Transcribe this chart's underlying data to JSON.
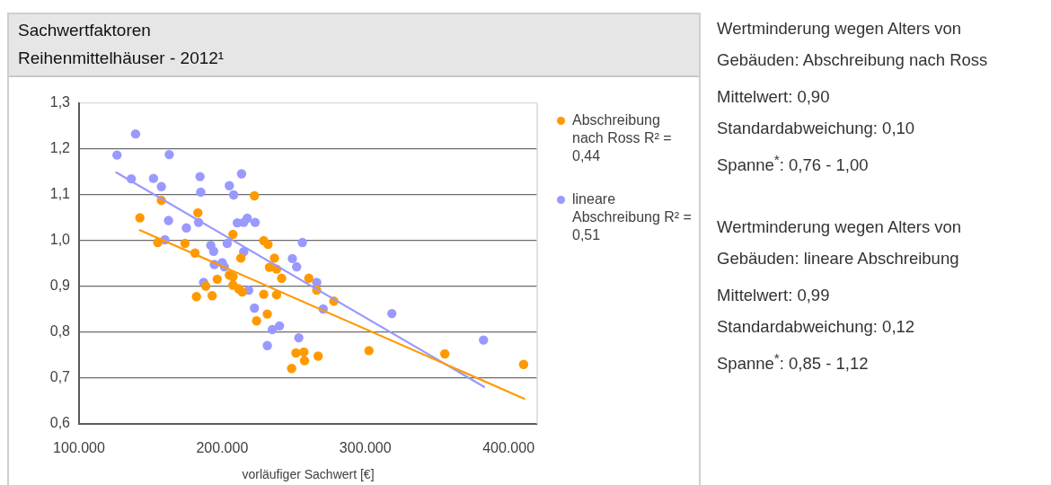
{
  "chart_data": {
    "type": "scatter",
    "title": "Sachwertfaktoren",
    "subtitle": "Reihenmittelhäuser - 2012¹",
    "xlabel": "vorläufiger Sachwert [€]",
    "annotations": [
      "Wertminderung wegen Alters von Gebäuden: Abschreibung nach Ross",
      "Mittelwert: 0,90",
      "Standardabweichung: 0,10",
      "Spanne$^{*}$: 0,76 - 1,00",
      "Wertminderung wegen Alters von Gebäuden: lineare Abschreibung",
      "Mittelwert: 0,99",
      "Standardabweichung: 0,12",
      "Spanne$^{*}$: 0,85 - 1,12"
    ],
    "legend": "right",
    "grid": "y",
    "marker": "circle",
    "xlim": [
      100000,
      420000
    ],
    "xticks": [
      {
        "value": 100000,
        "label": "100.000"
      },
      {
        "value": 200000,
        "label": "200.000"
      },
      {
        "value": 300000,
        "label": "300.000"
      },
      {
        "value": 400000,
        "label": "400.000"
      }
    ],
    "ylim": [
      0.6,
      1.3
    ],
    "yticks": [
      {
        "value": 0.6,
        "label": "0,6"
      },
      {
        "value": 0.7,
        "label": "0,7"
      },
      {
        "value": 0.8,
        "label": "0,8"
      },
      {
        "value": 0.9,
        "label": "0,9"
      },
      {
        "value": 1.0,
        "label": "1,0"
      },
      {
        "value": 1.1,
        "label": "1,1"
      },
      {
        "value": 1.2,
        "label": "1,2"
      },
      {
        "value": 1.3,
        "label": "1,3"
      }
    ],
    "series": [
      {
        "name": "Abschreibung nach Ross R² = 0,44",
        "color": "#ff9900",
        "x": [
          142500,
          157500,
          183000,
          155000,
          174000,
          181000,
          207500,
          205000,
          207500,
          196500,
          188500,
          207500,
          182000,
          193000,
          211500,
          214000,
          222500,
          229000,
          232000,
          213000,
          236500,
          233000,
          238000,
          241500,
          229000,
          238000,
          260500,
          266000,
          278000,
          231500,
          224000,
          251500,
          257000,
          257500,
          267000,
          248500,
          302500,
          355500,
          410500
        ],
        "values": [
          1.05,
          1.088,
          1.061,
          0.996,
          0.994,
          0.973,
          1.014,
          0.925,
          0.921,
          0.916,
          0.901,
          0.903,
          0.878,
          0.88,
          0.895,
          0.888,
          1.098,
          1.0,
          0.992,
          0.962,
          0.962,
          0.942,
          0.938,
          0.918,
          0.883,
          0.882,
          0.918,
          0.892,
          0.868,
          0.84,
          0.825,
          0.755,
          0.757,
          0.738,
          0.748,
          0.721,
          0.76,
          0.753,
          0.73
        ]
      },
      {
        "name": "lineare Abschreibung R² = 0,51",
        "color": "#9999ff",
        "x": [
          126500,
          139500,
          163000,
          136500,
          152000,
          157500,
          184500,
          185000,
          205000,
          208000,
          162500,
          175000,
          183500,
          160000,
          192000,
          194000,
          203500,
          194500,
          200000,
          201500,
          187000,
          213500,
          210500,
          215000,
          217500,
          223000,
          215000,
          218500,
          222500,
          256000,
          249000,
          252000,
          266000,
          270500,
          235000,
          240000,
          231500,
          253500,
          318500,
          382500
        ],
        "values": [
          1.187,
          1.233,
          1.188,
          1.135,
          1.136,
          1.118,
          1.14,
          1.106,
          1.12,
          1.1,
          1.044,
          1.028,
          1.04,
          1.002,
          0.99,
          0.977,
          0.994,
          0.948,
          0.952,
          0.943,
          0.909,
          1.146,
          1.039,
          1.04,
          1.049,
          1.04,
          0.976,
          0.892,
          0.853,
          0.996,
          0.961,
          0.943,
          0.909,
          0.851,
          0.806,
          0.814,
          0.771,
          0.788,
          0.841,
          0.783
        ]
      },
      {
        "type": "line",
        "marker": "none",
        "color": "#ff9900",
        "x": [
          142500,
          411000
        ],
        "values": [
          1.023,
          0.655
        ]
      },
      {
        "type": "line",
        "marker": "none",
        "color": "#9999ff",
        "x": [
          126000,
          383000
        ],
        "values": [
          1.149,
          0.681
        ]
      }
    ]
  }
}
